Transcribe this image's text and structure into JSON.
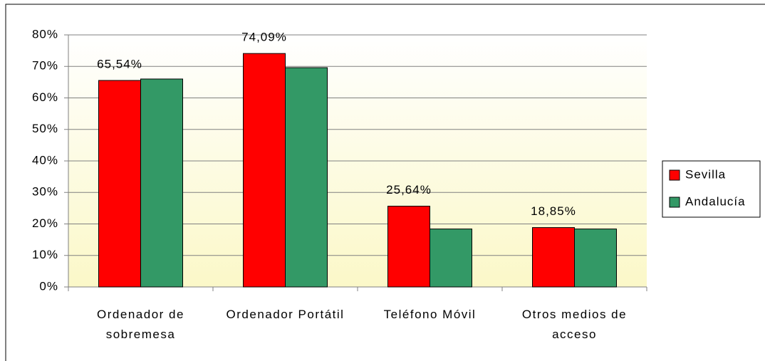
{
  "chart_data": {
    "type": "bar",
    "categories": [
      "Ordenador de sobremesa",
      "Ordenador Portátil",
      "Teléfono Móvil",
      "Otros medios de acceso"
    ],
    "series": [
      {
        "name": "Sevilla",
        "color": "#ff0000",
        "values": [
          65.54,
          74.09,
          25.64,
          18.85
        ],
        "value_labels": [
          "65,54%",
          "74,09%",
          "25,64%",
          "18,85%"
        ]
      },
      {
        "name": "Andalucía",
        "color": "#339966",
        "values": [
          66.0,
          69.6,
          18.4,
          18.4
        ]
      }
    ],
    "ylim": [
      0,
      80
    ],
    "yticks": [
      {
        "value": 0,
        "label": "0%"
      },
      {
        "value": 10,
        "label": "10%"
      },
      {
        "value": 20,
        "label": "20%"
      },
      {
        "value": 30,
        "label": "30%"
      },
      {
        "value": 40,
        "label": "40%"
      },
      {
        "value": 50,
        "label": "50%"
      },
      {
        "value": 60,
        "label": "60%"
      },
      {
        "value": 70,
        "label": "70%"
      },
      {
        "value": 80,
        "label": "80%"
      }
    ],
    "grid": true,
    "legend": "right"
  }
}
